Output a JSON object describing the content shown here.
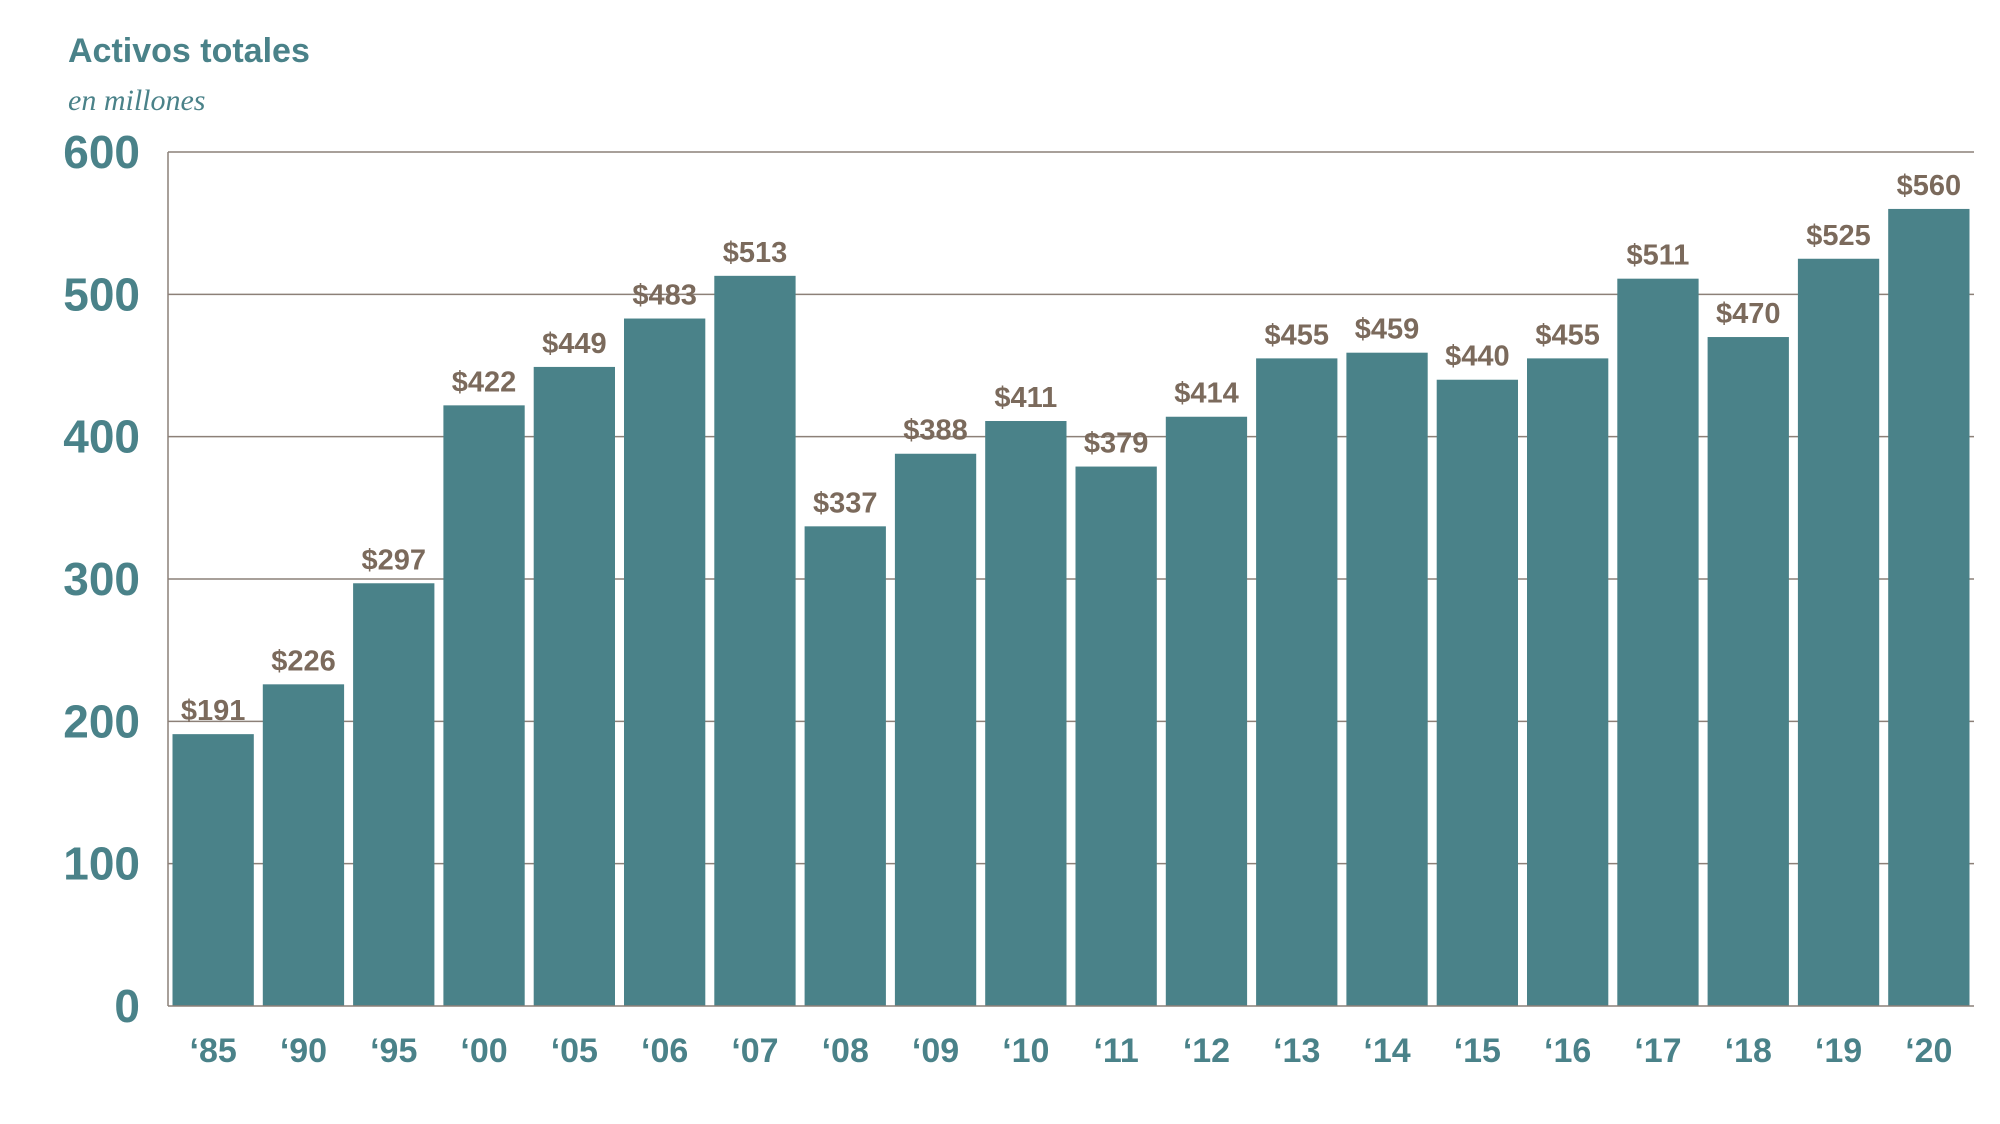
{
  "chart_data": {
    "type": "bar",
    "title": "Activos totales",
    "subtitle": "en millones",
    "categories": [
      "‘85",
      "‘90",
      "‘95",
      "‘00",
      "‘05",
      "‘06",
      "‘07",
      "‘08",
      "‘09",
      "‘10",
      "‘11",
      "‘12",
      "‘13",
      "‘14",
      "‘15",
      "‘16",
      "‘17",
      "‘18",
      "‘19",
      "‘20"
    ],
    "values": [
      191,
      226,
      297,
      422,
      449,
      483,
      513,
      337,
      388,
      411,
      379,
      414,
      455,
      459,
      440,
      455,
      511,
      470,
      525,
      560
    ],
    "data_labels": [
      "$191",
      "$226",
      "$297",
      "$422",
      "$449",
      "$483",
      "$513",
      "$337",
      "$388",
      "$411",
      "$379",
      "$414",
      "$455",
      "$459",
      "$440",
      "$455",
      "$511",
      "$470",
      "$525",
      "$560"
    ],
    "yticks": [
      0,
      100,
      200,
      300,
      400,
      500,
      600
    ],
    "ylim": [
      0,
      600
    ],
    "grid": true,
    "colors": {
      "bar": "#4a8289",
      "axis_text": "#4a8289",
      "data_label": "#7b6a5c",
      "grid": "#8c8078"
    }
  }
}
